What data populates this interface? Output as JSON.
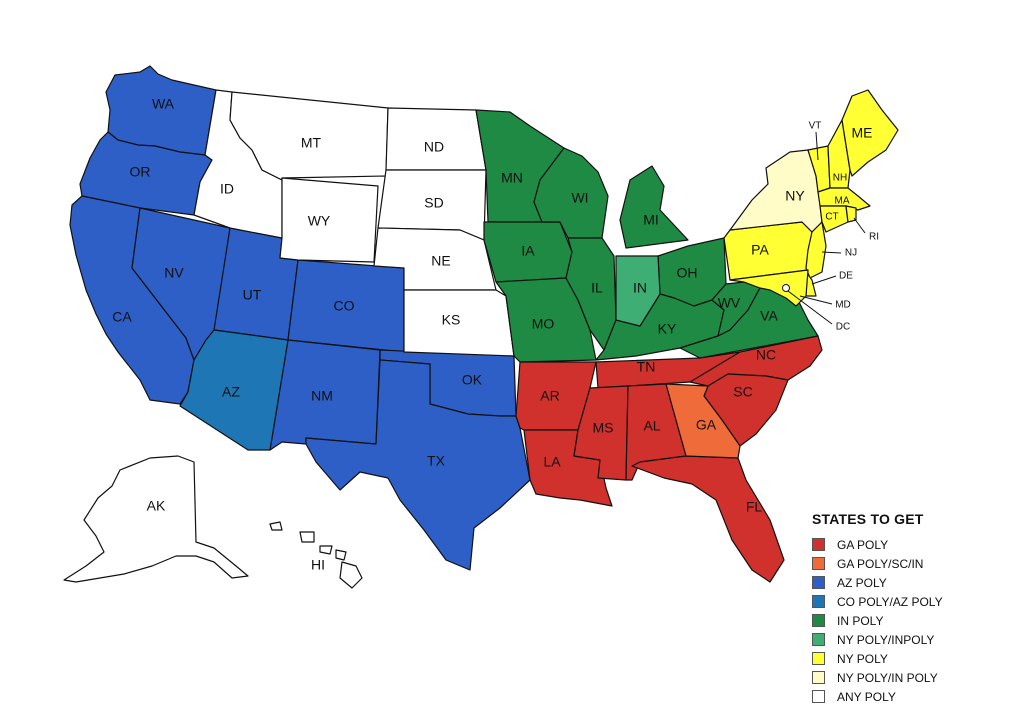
{
  "colors": {
    "ga_poly": "#d0312d",
    "ga_poly_sc_in": "#ef6c3a",
    "az_poly": "#2e5fc7",
    "co_poly_az_poly": "#1f76b4",
    "in_poly": "#1f8a44",
    "ny_poly_inpoly": "#3fae74",
    "ny_poly": "#ffff33",
    "ny_poly_in_poly": "#fffcc8",
    "any_poly": "#ffffff"
  },
  "legend": {
    "title": "STATES TO GET",
    "items": [
      {
        "label": "GA POLY",
        "color": "#d0312d"
      },
      {
        "label": "GA POLY/SC/IN",
        "color": "#ef6c3a"
      },
      {
        "label": "AZ POLY",
        "color": "#2e5fc7"
      },
      {
        "label": "CO POLY/AZ POLY",
        "color": "#1f76b4"
      },
      {
        "label": "IN POLY",
        "color": "#1f8a44"
      },
      {
        "label": "NY POLY/INPOLY",
        "color": "#3fae74"
      },
      {
        "label": "NY POLY",
        "color": "#ffff33"
      },
      {
        "label": "NY POLY/IN POLY",
        "color": "#fffcc8"
      },
      {
        "label": "ANY POLY",
        "color": "#ffffff"
      }
    ]
  },
  "states": {
    "WA": "WA",
    "OR": "OR",
    "CA": "CA",
    "NV": "NV",
    "ID": "ID",
    "MT": "MT",
    "WY": "WY",
    "UT": "UT",
    "CO": "CO",
    "AZ": "AZ",
    "NM": "NM",
    "ND": "ND",
    "SD": "SD",
    "NE": "NE",
    "KS": "KS",
    "OK": "OK",
    "TX": "TX",
    "MN": "MN",
    "IA": "IA",
    "MO": "MO",
    "AR": "AR",
    "LA": "LA",
    "WI": "WI",
    "IL": "IL",
    "MI": "MI",
    "IN": "IN",
    "OH": "OH",
    "KY": "KY",
    "TN": "TN",
    "MS": "MS",
    "AL": "AL",
    "GA": "GA",
    "FL": "FL",
    "SC": "SC",
    "NC": "NC",
    "VA": "VA",
    "WV": "WV",
    "PA": "PA",
    "NY": "NY",
    "VT": "VT",
    "NH": "NH",
    "ME": "ME",
    "MA": "MA",
    "CT": "CT",
    "RI": "RI",
    "NJ": "NJ",
    "DE": "DE",
    "MD": "MD",
    "DC": "DC",
    "AK": "AK",
    "HI": "HI"
  }
}
